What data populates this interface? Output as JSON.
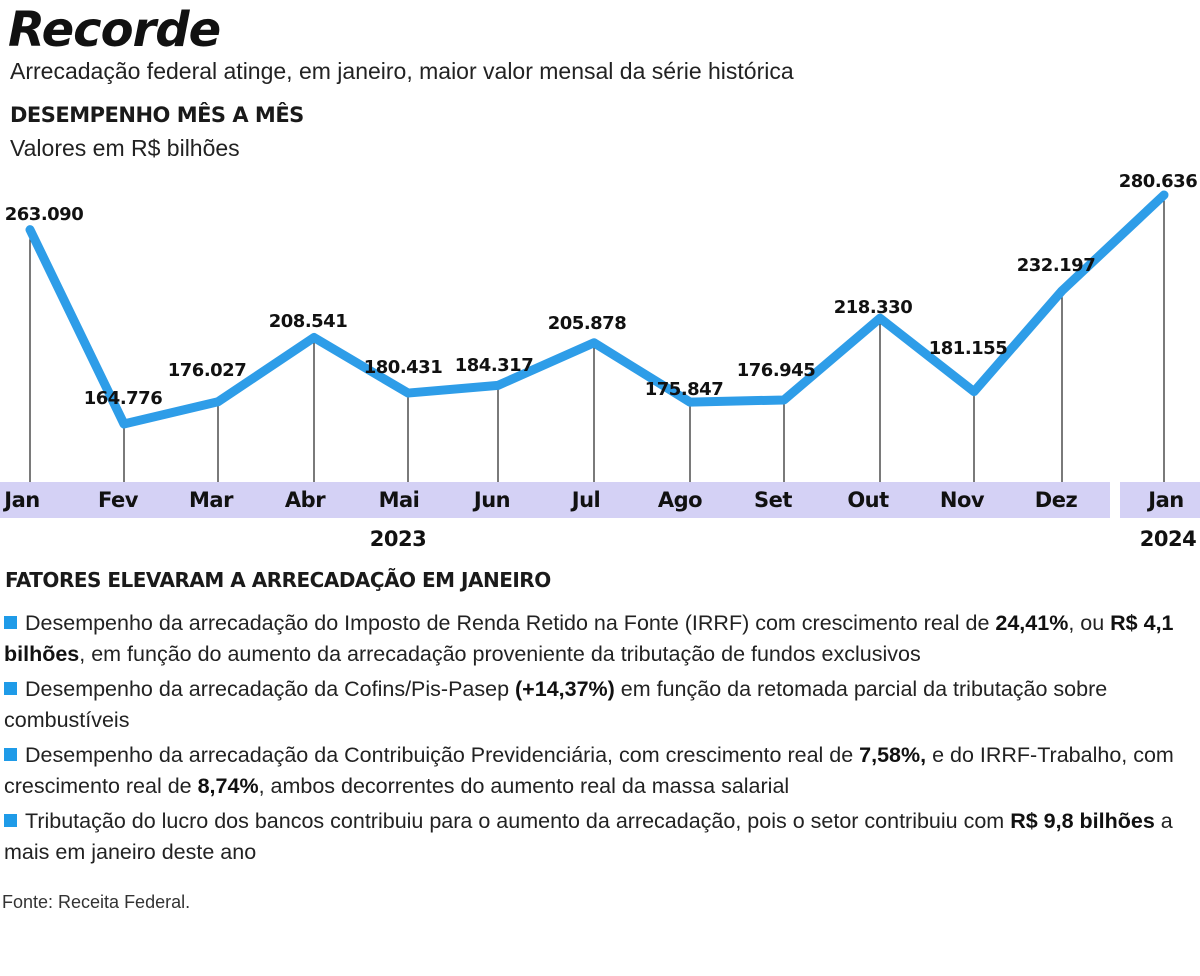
{
  "title": "Recorde",
  "subtitle": "Arrecadação federal atinge, em janeiro, maior valor mensal da série histórica",
  "section_title": "DESEMPENHO MÊS A MÊS",
  "unit_label": "Valores em R$ bilhões",
  "colors": {
    "line": "#2e9de8",
    "axis_band": "#d4d1f5",
    "bullet": "#1f9be8"
  },
  "chart_data": {
    "type": "line",
    "categories": [
      "Jan",
      "Fev",
      "Mar",
      "Abr",
      "Mai",
      "Jun",
      "Jul",
      "Ago",
      "Set",
      "Out",
      "Nov",
      "Dez",
      "Jan"
    ],
    "values": [
      263.09,
      164.776,
      176.027,
      208.541,
      180.431,
      184.317,
      205.878,
      175.847,
      176.945,
      218.33,
      181.155,
      232.197,
      280.636
    ],
    "value_labels": [
      "263.090",
      "164.776",
      "176.027",
      "208.541",
      "180.431",
      "184.317",
      "205.878",
      "175.847",
      "176.945",
      "218.330",
      "181.155",
      "232.197",
      "280.636"
    ],
    "year_groups": [
      {
        "year": "2023",
        "from": 0,
        "to": 11
      },
      {
        "year": "2024",
        "from": 12,
        "to": 12
      }
    ],
    "ylim": [
      130,
      290
    ],
    "grid": false,
    "legend": "none"
  },
  "factors": {
    "title": "FATORES ELEVARAM A ARRECADAÇÃO EM JANEIRO",
    "items": [
      [
        {
          "t": "Desempenho da arrecadação do Imposto de Renda Retido na Fonte (IRRF) com crescimento real de "
        },
        {
          "t": "24,41%",
          "b": true
        },
        {
          "t": ", ou "
        },
        {
          "t": "R$ 4,1 bilhões",
          "b": true
        },
        {
          "t": ", em função do aumento da arrecadação proveniente da tributação de fundos exclusivos"
        }
      ],
      [
        {
          "t": "Desempenho da arrecadação da Cofins/Pis-Pasep "
        },
        {
          "t": "(+14,37%)",
          "b": true
        },
        {
          "t": " em função da retomada parcial da tributação sobre combustíveis"
        }
      ],
      [
        {
          "t": "Desempenho da arrecadação da Contribuição Previdenciária, com crescimento real de "
        },
        {
          "t": "7,58%,",
          "b": true
        },
        {
          "t": " e do IRRF-Trabalho, com crescimento real de "
        },
        {
          "t": "8,74%",
          "b": true
        },
        {
          "t": ", ambos decorrentes do aumento real da massa salarial"
        }
      ],
      [
        {
          "t": "Tributação do lucro dos bancos contribuiu para o aumento da arrecadação, pois o setor contribuiu com "
        },
        {
          "t": "R$ 9,8 bilhões",
          "b": true
        },
        {
          "t": " a mais em janeiro deste ano"
        }
      ]
    ]
  },
  "source": "Fonte: Receita Federal."
}
